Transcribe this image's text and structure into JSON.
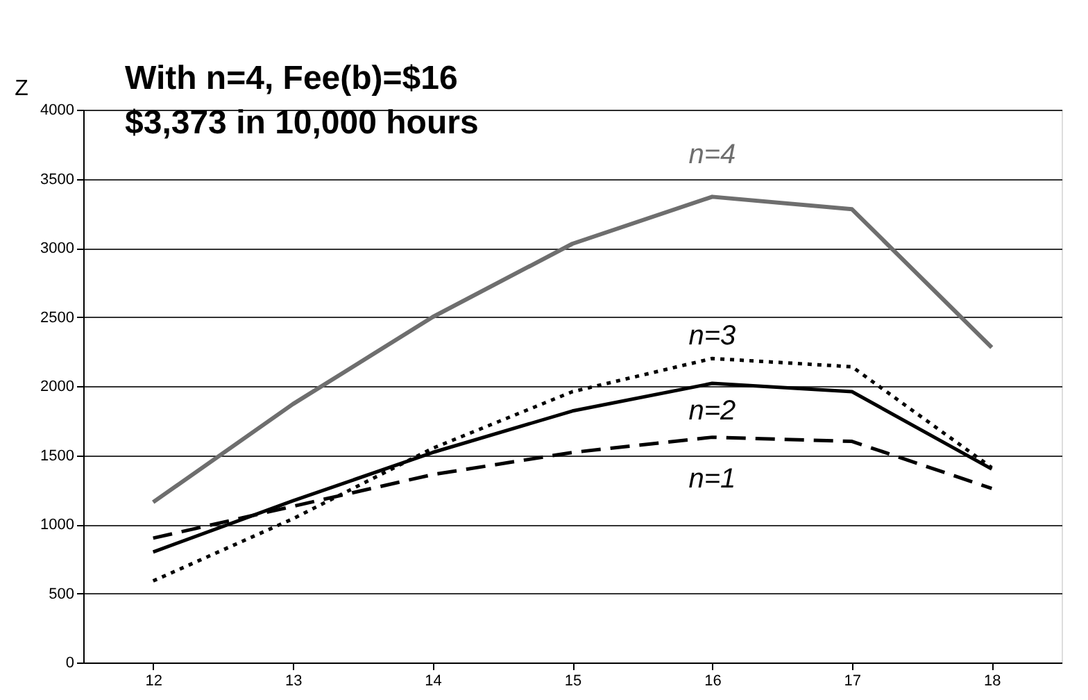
{
  "chart_data": {
    "type": "line",
    "ylabel": "Z",
    "categories": [
      "12",
      "13",
      "14",
      "15",
      "16",
      "17",
      "18"
    ],
    "series": [
      {
        "name": "n=1",
        "color": "#000000",
        "line_style": "dashed",
        "values": [
          900,
          1130,
          1360,
          1520,
          1630,
          1600,
          1260
        ]
      },
      {
        "name": "n=2",
        "color": "#000000",
        "line_style": "solid",
        "values": [
          800,
          1170,
          1520,
          1820,
          2020,
          1960,
          1400
        ]
      },
      {
        "name": "n=3",
        "color": "#000000",
        "line_style": "dotted",
        "values": [
          590,
          1040,
          1550,
          1960,
          2200,
          2140,
          1410
        ]
      },
      {
        "name": "n=4",
        "color": "#6e6e6e",
        "line_style": "solid",
        "values": [
          1160,
          1870,
          2500,
          3030,
          3370,
          3280,
          2280
        ]
      }
    ],
    "ylim": [
      0,
      4000
    ],
    "yticks": [
      0,
      500,
      1000,
      1500,
      2000,
      2500,
      3000,
      3500,
      4000
    ],
    "grid": "y",
    "legend": false,
    "annotations": [
      "With n=4, Fee(b)=$16",
      "$3,373 in 10,000 hours"
    ]
  }
}
